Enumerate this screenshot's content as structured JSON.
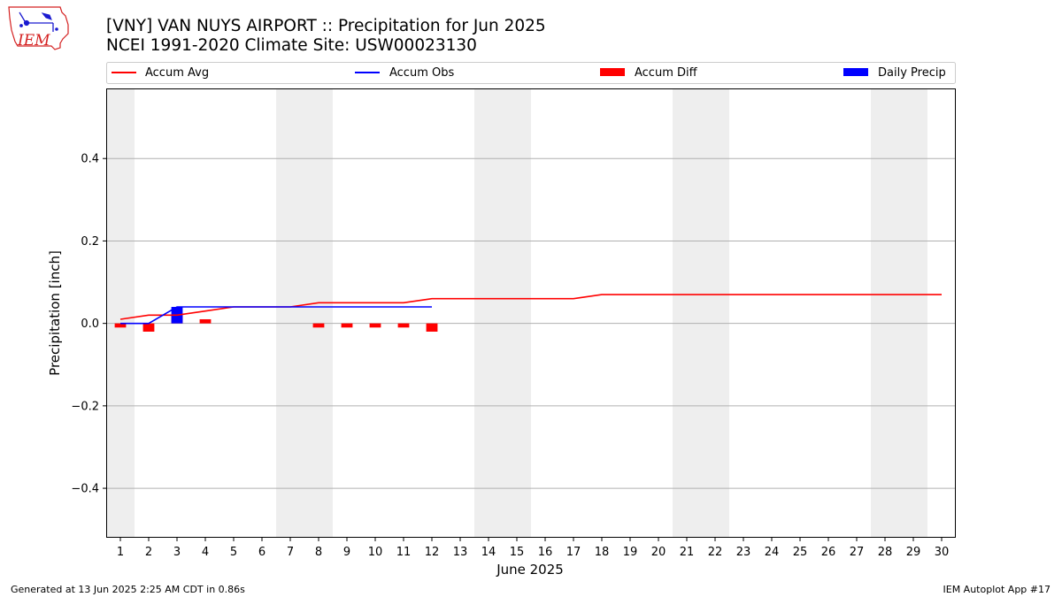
{
  "chart_data": {
    "type": "bar+line",
    "title": "[VNY] VAN NUYS AIRPORT :: Precipitation for Jun 2025",
    "subtitle": "NCEI 1991-2020 Climate Site: USW00023130",
    "xlabel": "June 2025",
    "ylabel": "Precipitation [inch]",
    "ylim": [
      -0.52,
      0.57
    ],
    "yticks": [
      -0.4,
      -0.2,
      0.0,
      0.2,
      0.4
    ],
    "ytick_labels": [
      "−0.4",
      "−0.2",
      "0.0",
      "0.2",
      "0.4"
    ],
    "xlim": [
      0.5,
      30.5
    ],
    "days": [
      1,
      2,
      3,
      4,
      5,
      6,
      7,
      8,
      9,
      10,
      11,
      12,
      13,
      14,
      15,
      16,
      17,
      18,
      19,
      20,
      21,
      22,
      23,
      24,
      25,
      26,
      27,
      28,
      29,
      30
    ],
    "weekend_days": [
      1,
      7,
      8,
      14,
      15,
      21,
      22,
      28,
      29
    ],
    "grid": "y",
    "legend_placement": "top",
    "series": [
      {
        "name": "Accum Avg",
        "type": "line",
        "color": "#ff0000",
        "x": [
          1,
          2,
          3,
          4,
          5,
          6,
          7,
          8,
          9,
          10,
          11,
          12,
          13,
          14,
          15,
          16,
          17,
          18,
          19,
          20,
          21,
          22,
          23,
          24,
          25,
          26,
          27,
          28,
          29,
          30
        ],
        "values": [
          0.01,
          0.02,
          0.02,
          0.03,
          0.04,
          0.04,
          0.04,
          0.05,
          0.05,
          0.05,
          0.05,
          0.06,
          0.06,
          0.06,
          0.06,
          0.06,
          0.06,
          0.07,
          0.07,
          0.07,
          0.07,
          0.07,
          0.07,
          0.07,
          0.07,
          0.07,
          0.07,
          0.07,
          0.07,
          0.07
        ]
      },
      {
        "name": "Accum Obs",
        "type": "line",
        "color": "#0000ff",
        "x": [
          1,
          2,
          3,
          4,
          5,
          6,
          7,
          8,
          9,
          10,
          11,
          12
        ],
        "values": [
          0.0,
          0.0,
          0.04,
          0.04,
          0.04,
          0.04,
          0.04,
          0.04,
          0.04,
          0.04,
          0.04,
          0.04
        ]
      },
      {
        "name": "Accum Diff",
        "type": "bar",
        "color": "#ff0000",
        "x": [
          1,
          2,
          3,
          4,
          5,
          6,
          7,
          8,
          9,
          10,
          11,
          12
        ],
        "values": [
          -0.01,
          -0.02,
          0.02,
          0.01,
          0.0,
          0.0,
          0.0,
          -0.01,
          -0.01,
          -0.01,
          -0.01,
          -0.02
        ]
      },
      {
        "name": "Daily Precip",
        "type": "bar",
        "color": "#0000ff",
        "x": [
          3
        ],
        "values": [
          0.04
        ]
      }
    ]
  },
  "logo": {
    "text": "IEM",
    "colors": {
      "outline": "#d42020",
      "icons": "#1a1ad0"
    }
  },
  "footer": {
    "left": "Generated at 13 Jun 2025 2:25 AM CDT in 0.86s",
    "right": "IEM Autoplot App #17"
  },
  "colors": {
    "weekend_band": "#eeeeee",
    "grid": "#b0b0b0",
    "legend_border": "#cccccc"
  }
}
